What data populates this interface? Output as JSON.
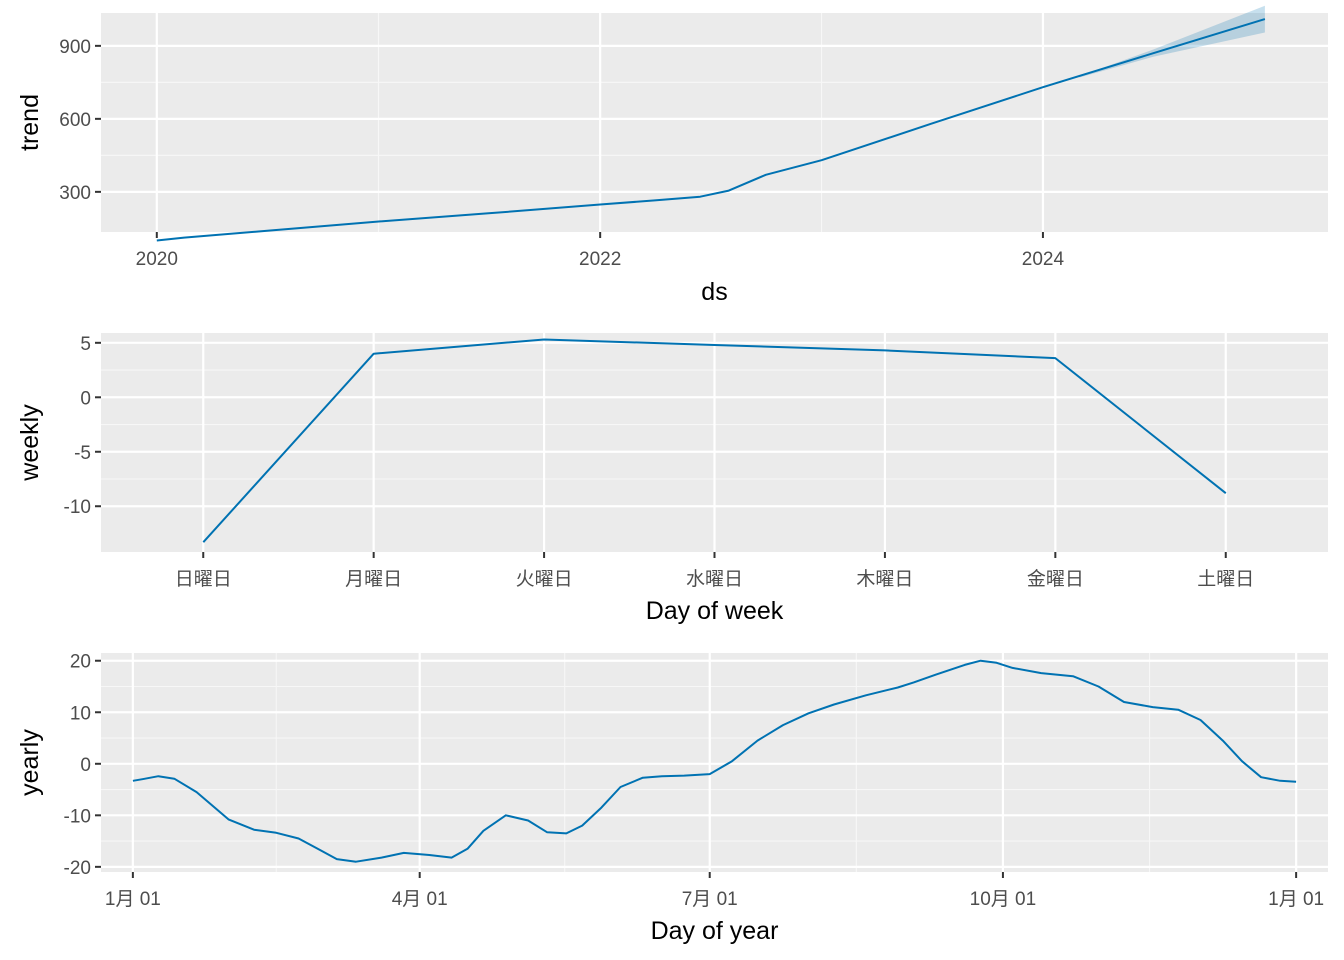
{
  "colors": {
    "panel": "#ebebeb",
    "grid": "#ffffff",
    "line": "#0072b2",
    "band": "#0072b2"
  },
  "chart_data": [
    {
      "type": "line",
      "xlabel": "ds",
      "ylabel": "trend",
      "x_type": "date",
      "xlim": [
        "2019-10-01",
        "2025-04-15"
      ],
      "ylim": [
        135,
        1035
      ],
      "x_ticks": [
        "2020-01-01",
        "2022-01-01",
        "2024-01-01"
      ],
      "x_tick_labels": [
        "2020",
        "2022",
        "2024"
      ],
      "y_ticks": [
        300,
        600,
        900
      ],
      "y_tick_labels": [
        "300",
        "600",
        "900"
      ],
      "grid": true,
      "series": [
        {
          "x": [
            "2020-01-01",
            "2020-02-15",
            "2020-07-01",
            "2021-01-01",
            "2021-07-01",
            "2022-01-01",
            "2022-04-01",
            "2022-06-15",
            "2022-08-01",
            "2022-10-01",
            "2023-01-01",
            "2023-07-01",
            "2024-01-01",
            "2024-07-01",
            "2025-01-01"
          ],
          "values": [
            100,
            112,
            140,
            178,
            212,
            248,
            265,
            280,
            305,
            370,
            430,
            580,
            730,
            870,
            1010
          ]
        }
      ],
      "band": {
        "x": [
          "2024-03-01",
          "2024-07-01",
          "2025-01-01"
        ],
        "lower": [
          770,
          855,
          955
        ],
        "upper": [
          775,
          885,
          1065
        ]
      }
    },
    {
      "type": "line",
      "xlabel": "Day of week",
      "ylabel": "weekly",
      "categories": [
        "日曜日",
        "月曜日",
        "火曜日",
        "水曜日",
        "木曜日",
        "金曜日",
        "土曜日"
      ],
      "ylim": [
        -14.2,
        5.9
      ],
      "y_ticks": [
        -10,
        -5,
        0,
        5
      ],
      "y_tick_labels": [
        "-10",
        "-5",
        "0",
        "5"
      ],
      "grid": true,
      "series": [
        {
          "values": [
            -13.3,
            4.0,
            5.3,
            4.8,
            4.3,
            3.6,
            -8.8
          ]
        }
      ]
    },
    {
      "type": "line",
      "xlabel": "Day of year",
      "ylabel": "yearly",
      "x_type": "day-of-year",
      "xlim": [
        -10,
        375
      ],
      "ylim": [
        -21,
        21.5
      ],
      "x_ticks": [
        0,
        90,
        181,
        273,
        365
      ],
      "x_tick_labels": [
        "1月 01",
        "4月 01",
        "7月 01",
        "10月 01",
        "1月 01"
      ],
      "y_ticks": [
        -20,
        -10,
        0,
        10,
        20
      ],
      "y_tick_labels": [
        "-20",
        "-10",
        "0",
        "10",
        "20"
      ],
      "grid": true,
      "series": [
        {
          "x": [
            0,
            3,
            8,
            13,
            20,
            30,
            38,
            45,
            52,
            58,
            64,
            70,
            78,
            85,
            93,
            100,
            105,
            110,
            117,
            124,
            130,
            136,
            141,
            147,
            153,
            160,
            166,
            173,
            181,
            188,
            196,
            204,
            212,
            220,
            230,
            240,
            245,
            252,
            261,
            266,
            271,
            276,
            285,
            295,
            303,
            311,
            320,
            328,
            335,
            342,
            348,
            354,
            360,
            365
          ],
          "values": [
            -3.3,
            -3.0,
            -2.4,
            -2.9,
            -5.5,
            -10.8,
            -12.8,
            -13.4,
            -14.5,
            -16.5,
            -18.5,
            -19.0,
            -18.2,
            -17.3,
            -17.7,
            -18.2,
            -16.5,
            -13.0,
            -10.0,
            -11.0,
            -13.3,
            -13.5,
            -12.0,
            -8.5,
            -4.5,
            -2.7,
            -2.4,
            -2.3,
            -2.0,
            0.5,
            4.5,
            7.5,
            9.8,
            11.5,
            13.3,
            14.8,
            15.8,
            17.3,
            19.2,
            20.0,
            19.6,
            18.6,
            17.6,
            17.0,
            15.0,
            12.0,
            11.0,
            10.5,
            8.5,
            4.5,
            0.5,
            -2.6,
            -3.3,
            -3.5
          ]
        }
      ]
    }
  ]
}
